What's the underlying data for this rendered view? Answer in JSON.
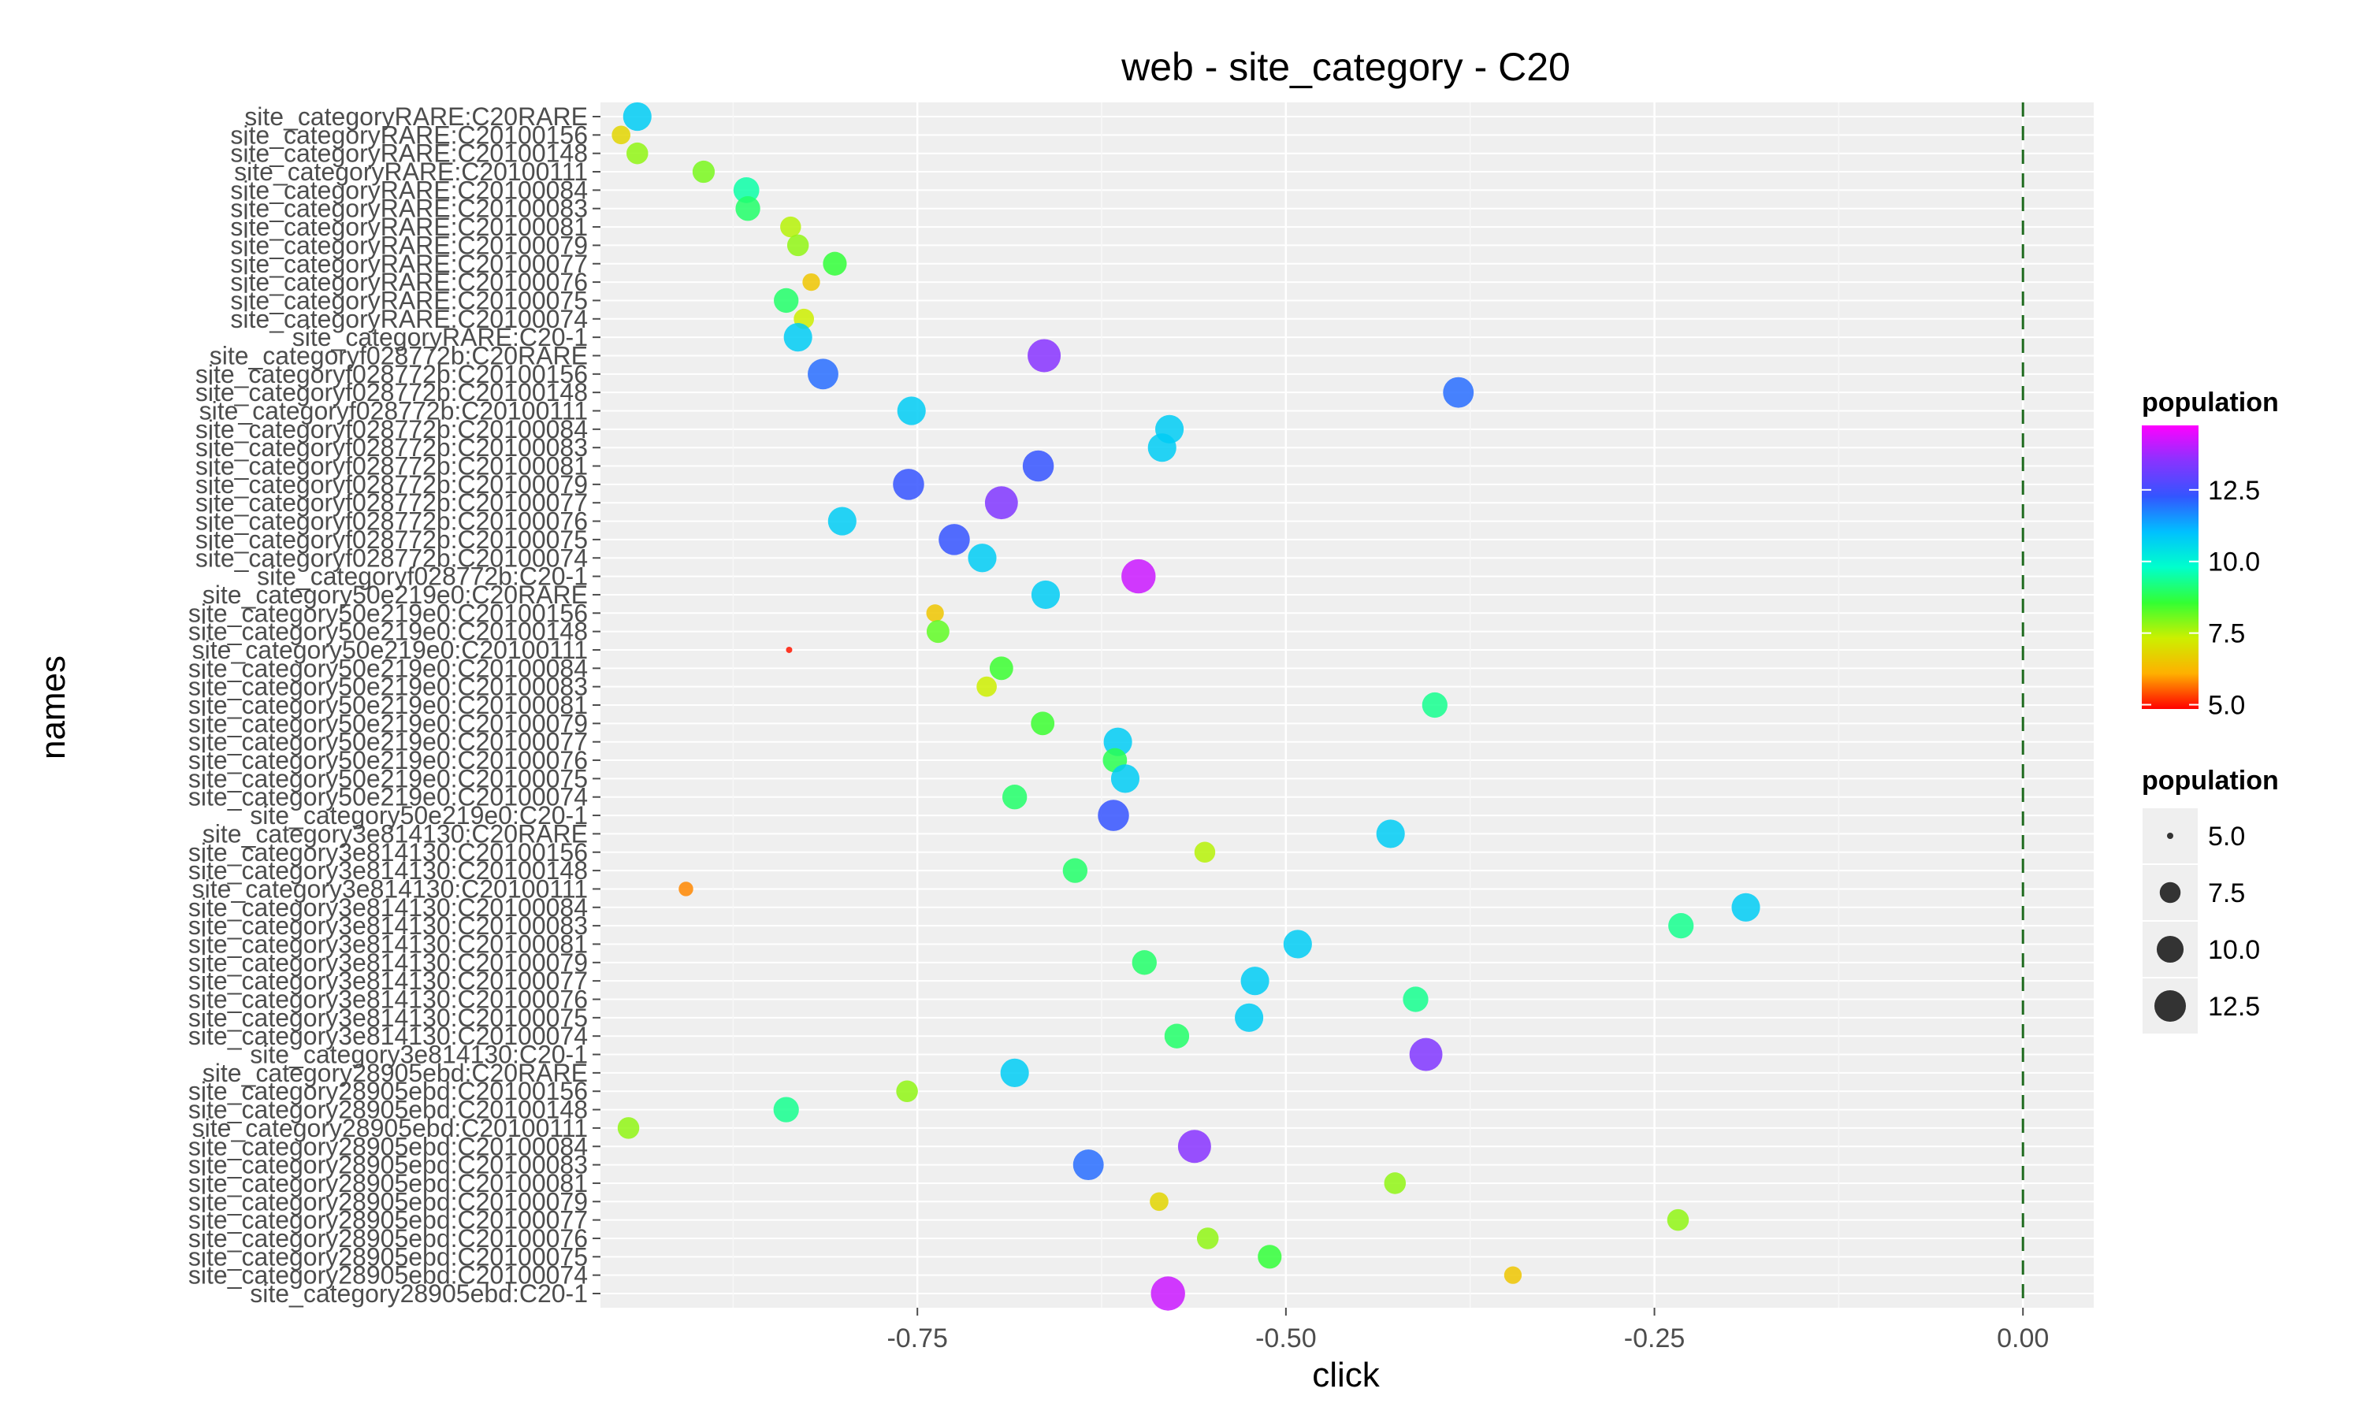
{
  "chart_data": {
    "type": "scatter",
    "title": "web - site_category - C20",
    "xlabel": "click",
    "ylabel": "names",
    "xlim": [
      -0.965,
      0.048
    ],
    "x_ticks": [
      -0.75,
      -0.5,
      -0.25,
      0.0
    ],
    "x_tick_labels": [
      "-0.75",
      "-0.50",
      "-0.25",
      "0.00"
    ],
    "reference_line": {
      "x": 0.0,
      "style": "dashed",
      "color": "#1f6b1f"
    },
    "grid": true,
    "categories": [
      "site_categoryRARE:C20RARE",
      "site_categoryRARE:C20100156",
      "site_categoryRARE:C20100148",
      "site_categoryRARE:C20100111",
      "site_categoryRARE:C20100084",
      "site_categoryRARE:C20100083",
      "site_categoryRARE:C20100081",
      "site_categoryRARE:C20100079",
      "site_categoryRARE:C20100077",
      "site_categoryRARE:C20100076",
      "site_categoryRARE:C20100075",
      "site_categoryRARE:C20100074",
      "site_categoryRARE:C20-1",
      "site_categoryf028772b:C20RARE",
      "site_categoryf028772b:C20100156",
      "site_categoryf028772b:C20100148",
      "site_categoryf028772b:C20100111",
      "site_categoryf028772b:C20100084",
      "site_categoryf028772b:C20100083",
      "site_categoryf028772b:C20100081",
      "site_categoryf028772b:C20100079",
      "site_categoryf028772b:C20100077",
      "site_categoryf028772b:C20100076",
      "site_categoryf028772b:C20100075",
      "site_categoryf028772b:C20100074",
      "site_categoryf028772b:C20-1",
      "site_category50e219e0:C20RARE",
      "site_category50e219e0:C20100156",
      "site_category50e219e0:C20100148",
      "site_category50e219e0:C20100111",
      "site_category50e219e0:C20100084",
      "site_category50e219e0:C20100083",
      "site_category50e219e0:C20100081",
      "site_category50e219e0:C20100079",
      "site_category50e219e0:C20100077",
      "site_category50e219e0:C20100076",
      "site_category50e219e0:C20100075",
      "site_category50e219e0:C20100074",
      "site_category50e219e0:C20-1",
      "site_category3e814130:C20RARE",
      "site_category3e814130:C20100156",
      "site_category3e814130:C20100148",
      "site_category3e814130:C20100111",
      "site_category3e814130:C20100084",
      "site_category3e814130:C20100083",
      "site_category3e814130:C20100081",
      "site_category3e814130:C20100079",
      "site_category3e814130:C20100077",
      "site_category3e814130:C20100076",
      "site_category3e814130:C20100075",
      "site_category3e814130:C20100074",
      "site_category3e814130:C20-1",
      "site_category28905ebd:C20RARE",
      "site_category28905ebd:C20100156",
      "site_category28905ebd:C20100148",
      "site_category28905ebd:C20100111",
      "site_category28905ebd:C20100084",
      "site_category28905ebd:C20100083",
      "site_category28905ebd:C20100081",
      "site_category28905ebd:C20100079",
      "site_category28905ebd:C20100077",
      "site_category28905ebd:C20100076",
      "site_category28905ebd:C20100075",
      "site_category28905ebd:C20100074",
      "site_category28905ebd:C20-1"
    ],
    "points": [
      {
        "name": "site_categoryRARE:C20RARE",
        "click": -0.94,
        "population": 10.8
      },
      {
        "name": "site_categoryRARE:C20100156",
        "click": -0.951,
        "population": 6.8
      },
      {
        "name": "site_categoryRARE:C20100148",
        "click": -0.94,
        "population": 7.8
      },
      {
        "name": "site_categoryRARE:C20100111",
        "click": -0.895,
        "population": 8.0
      },
      {
        "name": "site_categoryRARE:C20100084",
        "click": -0.866,
        "population": 9.5
      },
      {
        "name": "site_categoryRARE:C20100083",
        "click": -0.865,
        "population": 9.0
      },
      {
        "name": "site_categoryRARE:C20100081",
        "click": -0.836,
        "population": 7.5
      },
      {
        "name": "site_categoryRARE:C20100079",
        "click": -0.831,
        "population": 7.8
      },
      {
        "name": "site_categoryRARE:C20100077",
        "click": -0.806,
        "population": 8.6
      },
      {
        "name": "site_categoryRARE:C20100076",
        "click": -0.822,
        "population": 6.5
      },
      {
        "name": "site_categoryRARE:C20100075",
        "click": -0.839,
        "population": 9.0
      },
      {
        "name": "site_categoryRARE:C20100074",
        "click": -0.827,
        "population": 7.3
      },
      {
        "name": "site_categoryRARE:C20-1",
        "click": -0.831,
        "population": 10.8
      },
      {
        "name": "site_categoryf028772b:C20RARE",
        "click": -0.664,
        "population": 13.5
      },
      {
        "name": "site_categoryf028772b:C20100156",
        "click": -0.814,
        "population": 12.0
      },
      {
        "name": "site_categoryf028772b:C20100148",
        "click": -0.383,
        "population": 12.0
      },
      {
        "name": "site_categoryf028772b:C20100111",
        "click": -0.754,
        "population": 10.8
      },
      {
        "name": "site_categoryf028772b:C20100084",
        "click": -0.579,
        "population": 10.8
      },
      {
        "name": "site_categoryf028772b:C20100083",
        "click": -0.584,
        "population": 10.8
      },
      {
        "name": "site_categoryf028772b:C20100081",
        "click": -0.668,
        "population": 12.3
      },
      {
        "name": "site_categoryf028772b:C20100079",
        "click": -0.756,
        "population": 12.3
      },
      {
        "name": "site_categoryf028772b:C20100077",
        "click": -0.693,
        "population": 13.4
      },
      {
        "name": "site_categoryf028772b:C20100076",
        "click": -0.801,
        "population": 10.8
      },
      {
        "name": "site_categoryf028772b:C20100075",
        "click": -0.725,
        "population": 12.3
      },
      {
        "name": "site_categoryf028772b:C20100074",
        "click": -0.706,
        "population": 10.8
      },
      {
        "name": "site_categoryf028772b:C20-1",
        "click": -0.6,
        "population": 14.2
      },
      {
        "name": "site_category50e219e0:C20RARE",
        "click": -0.663,
        "population": 10.8
      },
      {
        "name": "site_category50e219e0:C20100156",
        "click": -0.738,
        "population": 6.5
      },
      {
        "name": "site_category50e219e0:C20100148",
        "click": -0.736,
        "population": 8.2
      },
      {
        "name": "site_category50e219e0:C20100111",
        "click": -0.837,
        "population": 5.0
      },
      {
        "name": "site_category50e219e0:C20100084",
        "click": -0.693,
        "population": 8.5
      },
      {
        "name": "site_category50e219e0:C20100083",
        "click": -0.703,
        "population": 7.3
      },
      {
        "name": "site_category50e219e0:C20100081",
        "click": -0.399,
        "population": 9.3
      },
      {
        "name": "site_category50e219e0:C20100079",
        "click": -0.665,
        "population": 8.5
      },
      {
        "name": "site_category50e219e0:C20100077",
        "click": -0.614,
        "population": 10.8
      },
      {
        "name": "site_category50e219e0:C20100076",
        "click": -0.616,
        "population": 8.8
      },
      {
        "name": "site_category50e219e0:C20100075",
        "click": -0.609,
        "population": 10.8
      },
      {
        "name": "site_category50e219e0:C20100074",
        "click": -0.684,
        "population": 9.0
      },
      {
        "name": "site_category50e219e0:C20-1",
        "click": -0.617,
        "population": 12.3
      },
      {
        "name": "site_category3e814130:C20RARE",
        "click": -0.429,
        "population": 10.8
      },
      {
        "name": "site_category3e814130:C20100156",
        "click": -0.555,
        "population": 7.5
      },
      {
        "name": "site_category3e814130:C20100148",
        "click": -0.643,
        "population": 9.0
      },
      {
        "name": "site_category3e814130:C20100111",
        "click": -0.907,
        "population": 5.8
      },
      {
        "name": "site_category3e814130:C20100084",
        "click": -0.188,
        "population": 10.8
      },
      {
        "name": "site_category3e814130:C20100083",
        "click": -0.232,
        "population": 9.3
      },
      {
        "name": "site_category3e814130:C20100081",
        "click": -0.492,
        "population": 10.8
      },
      {
        "name": "site_category3e814130:C20100079",
        "click": -0.596,
        "population": 9.0
      },
      {
        "name": "site_category3e814130:C20100077",
        "click": -0.521,
        "population": 10.8
      },
      {
        "name": "site_category3e814130:C20100076",
        "click": -0.412,
        "population": 9.3
      },
      {
        "name": "site_category3e814130:C20100075",
        "click": -0.525,
        "population": 10.8
      },
      {
        "name": "site_category3e814130:C20100074",
        "click": -0.574,
        "population": 9.0
      },
      {
        "name": "site_category3e814130:C20-1",
        "click": -0.405,
        "population": 13.4
      },
      {
        "name": "site_category28905ebd:C20RARE",
        "click": -0.684,
        "population": 10.8
      },
      {
        "name": "site_category28905ebd:C20100156",
        "click": -0.757,
        "population": 7.8
      },
      {
        "name": "site_category28905ebd:C20100148",
        "click": -0.839,
        "population": 9.3
      },
      {
        "name": "site_category28905ebd:C20100111",
        "click": -0.946,
        "population": 7.8
      },
      {
        "name": "site_category28905ebd:C20100084",
        "click": -0.562,
        "population": 13.5
      },
      {
        "name": "site_category28905ebd:C20100083",
        "click": -0.634,
        "population": 12.0
      },
      {
        "name": "site_category28905ebd:C20100081",
        "click": -0.426,
        "population": 7.8
      },
      {
        "name": "site_category28905ebd:C20100079",
        "click": -0.586,
        "population": 6.8
      },
      {
        "name": "site_category28905ebd:C20100077",
        "click": -0.234,
        "population": 7.8
      },
      {
        "name": "site_category28905ebd:C20100076",
        "click": -0.553,
        "population": 7.8
      },
      {
        "name": "site_category28905ebd:C20100075",
        "click": -0.511,
        "population": 8.6
      },
      {
        "name": "site_category28905ebd:C20100074",
        "click": -0.346,
        "population": 6.5
      },
      {
        "name": "site_category28905ebd:C20-1",
        "click": -0.58,
        "population": 14.2
      }
    ],
    "legend_color": {
      "title": "population",
      "range": [
        4.85,
        14.75
      ],
      "breaks": [
        12.5,
        10.0,
        7.5,
        5.0
      ],
      "labels": [
        "12.5",
        "10.0",
        "7.5",
        "5.0"
      ],
      "colors": [
        "#ff0000",
        "#ffb000",
        "#ccf000",
        "#33ff33",
        "#00ffcc",
        "#00c0ff",
        "#3355ff",
        "#8833ff",
        "#ff00ff"
      ]
    },
    "legend_size": {
      "title": "population",
      "breaks": [
        5.0,
        7.5,
        10.0,
        12.5
      ],
      "labels": [
        "5.0",
        "7.5",
        "10.0",
        "12.5"
      ]
    },
    "legend_placement": "right"
  }
}
